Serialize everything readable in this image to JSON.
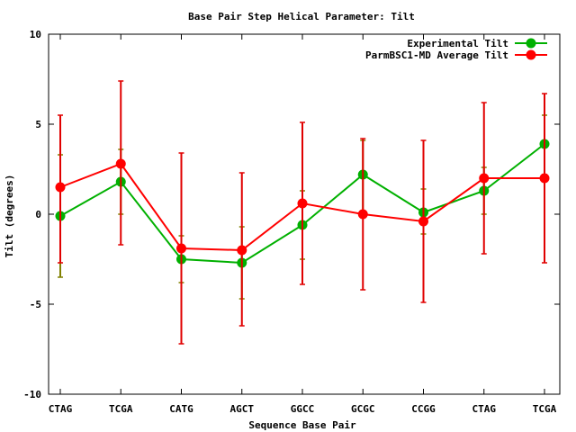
{
  "chart_data": {
    "type": "line",
    "title": "Base Pair Step Helical Parameter: Tilt",
    "xlabel": "Sequence Base Pair",
    "ylabel": "Tilt (degrees)",
    "categories": [
      "CTAG",
      "TCGA",
      "CATG",
      "AGCT",
      "GGCC",
      "GCGC",
      "CCGG",
      "CTAG",
      "TCGA"
    ],
    "ylim": [
      -10,
      10
    ],
    "yticks": [
      10,
      5,
      0,
      -5,
      -10
    ],
    "ytick_labels": [
      "10",
      "5",
      "0",
      "-5",
      "-10"
    ],
    "grid": false,
    "legend_position": "top-right",
    "series": [
      {
        "name": "Experimental Tilt",
        "color": "#00b000",
        "errorbar_color": "#808000",
        "values": [
          -0.1,
          1.8,
          -2.5,
          -2.7,
          -0.6,
          2.2,
          0.1,
          1.3,
          3.9
        ],
        "err_low": [
          -3.5,
          0.0,
          -3.8,
          -4.7,
          -2.5,
          0.0,
          -1.1,
          0.0,
          2.2
        ],
        "err_high": [
          3.3,
          3.6,
          -1.2,
          -0.7,
          1.3,
          4.1,
          1.4,
          2.6,
          5.5
        ]
      },
      {
        "name": "ParmBSC1-MD Average Tilt",
        "color": "#ff0000",
        "errorbar_color": "#e00000",
        "values": [
          1.5,
          2.8,
          -1.9,
          -2.0,
          0.6,
          0.0,
          -0.4,
          2.0,
          2.0
        ],
        "err_low": [
          -2.7,
          -1.7,
          -7.2,
          -6.2,
          -3.9,
          -4.2,
          -4.9,
          -2.2,
          -2.7
        ],
        "err_high": [
          5.5,
          7.4,
          3.4,
          2.3,
          5.1,
          4.2,
          4.1,
          6.2,
          6.7
        ]
      }
    ]
  }
}
